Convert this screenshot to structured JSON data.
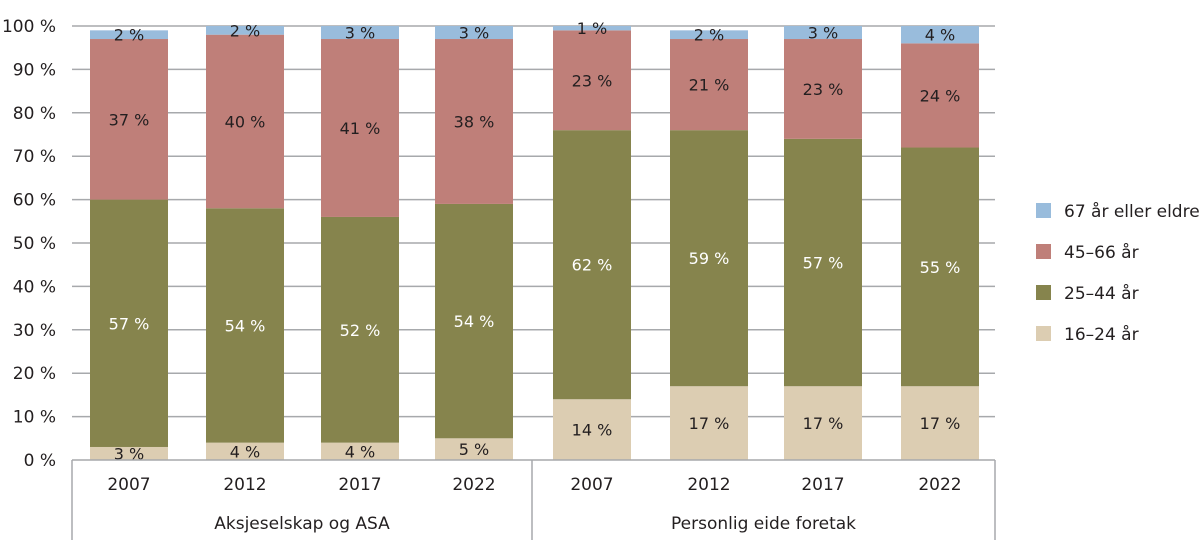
{
  "chart_data": {
    "type": "bar",
    "stacked": true,
    "title": "",
    "xlabel": "",
    "ylabel": "",
    "ylim": [
      0,
      100
    ],
    "y_ticks": [
      "0 %",
      "10 %",
      "20 %",
      "30 %",
      "40 %",
      "50 %",
      "60 %",
      "70 %",
      "80 %",
      "90 %",
      "100 %"
    ],
    "grid": true,
    "legend_position": "right",
    "groups": [
      {
        "label": "Aksjeselskap og ASA",
        "categories": [
          "2007",
          "2012",
          "2017",
          "2022"
        ]
      },
      {
        "label": "Personlig eide foretak",
        "categories": [
          "2007",
          "2012",
          "2017",
          "2022"
        ]
      }
    ],
    "categories": [
      "2007",
      "2012",
      "2017",
      "2022",
      "2007",
      "2012",
      "2017",
      "2022"
    ],
    "series": [
      {
        "name": "16–24 år",
        "color": "#dccdb2",
        "label_color": "#231f20",
        "values": [
          3,
          4,
          4,
          5,
          14,
          17,
          17,
          17
        ],
        "labels": [
          "3 %",
          "4 %",
          "4 %",
          "5 %",
          "14 %",
          "17 %",
          "17 %",
          "17 %"
        ]
      },
      {
        "name": "25–44 år",
        "color": "#86844d",
        "label_color": "#ffffff",
        "values": [
          57,
          54,
          52,
          54,
          62,
          59,
          57,
          55
        ],
        "labels": [
          "57 %",
          "54 %",
          "52 %",
          "54 %",
          "62 %",
          "59 %",
          "57 %",
          "55 %"
        ]
      },
      {
        "name": "45–66 år",
        "color": "#bf7f79",
        "label_color": "#231f20",
        "values": [
          37,
          40,
          41,
          38,
          23,
          21,
          23,
          24
        ],
        "labels": [
          "37 %",
          "40 %",
          "41 %",
          "38 %",
          "23 %",
          "21 %",
          "23 %",
          "24 %"
        ]
      },
      {
        "name": "67 år eller eldre",
        "color": "#99bcdc",
        "label_color": "#231f20",
        "values": [
          2,
          2,
          3,
          3,
          1,
          2,
          3,
          4
        ],
        "labels": [
          "2 %",
          "2 %",
          "3 %",
          "3 %",
          "1 %",
          "2 %",
          "3 %",
          "4 %"
        ]
      }
    ],
    "legend_order": [
      "67 år eller eldre",
      "45–66 år",
      "25–44 år",
      "16–24 år"
    ]
  }
}
